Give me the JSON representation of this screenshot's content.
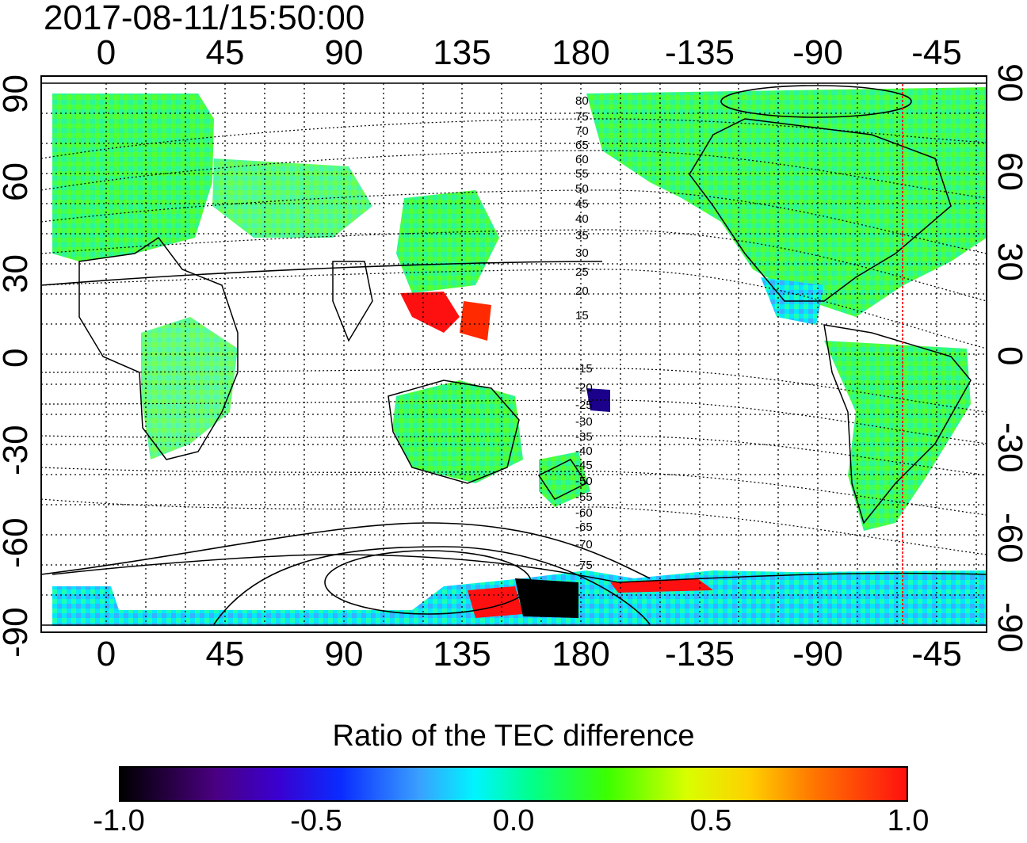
{
  "timestamp": "2017-08-11/15:50:00",
  "lon_ticks": [
    "0",
    "45",
    "90",
    "135",
    "180",
    "-135",
    "-90",
    "-45"
  ],
  "lat_ticks": [
    "90",
    "60",
    "30",
    "0",
    "-30",
    "-60",
    "-90"
  ],
  "magnetic_lat_labels": [
    "80",
    "75",
    "70",
    "65",
    "60",
    "55",
    "50",
    "45",
    "40",
    "35",
    "30",
    "25",
    "20",
    "15",
    "-15",
    "-20",
    "-25",
    "-30",
    "-35",
    "-40",
    "-45",
    "-50",
    "-55",
    "-60",
    "-65",
    "-70",
    "-75"
  ],
  "colorbar": {
    "title": "Ratio of the TEC difference",
    "ticks": [
      "-1.0",
      "-0.5",
      "0.0",
      "0.5",
      "1.0"
    ],
    "min": -1.0,
    "max": 1.0
  },
  "colors": {
    "terminator_line": "#ff0000",
    "coastline": "#000000",
    "grid": "#000000"
  }
}
